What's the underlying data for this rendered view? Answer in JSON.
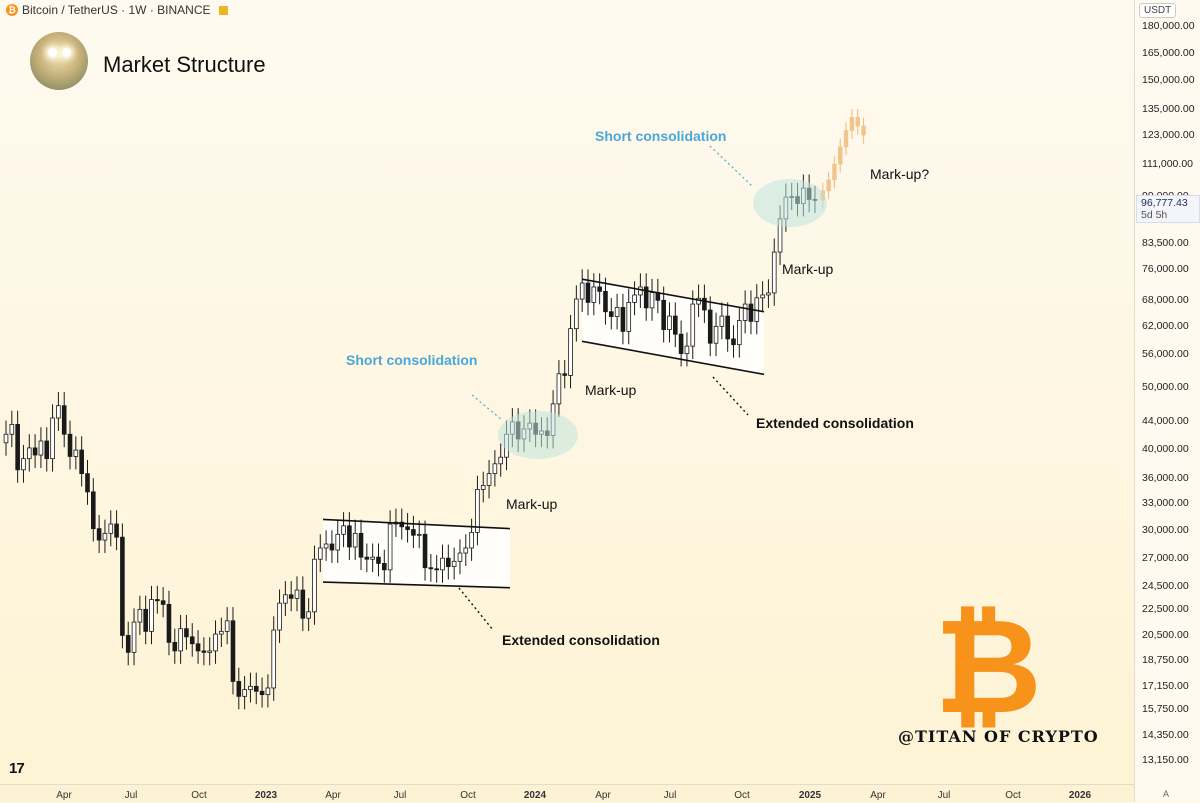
{
  "header": {
    "symbol": "Bitcoin / TetherUS · 1W · BINANCE",
    "symbol_icon": "bitcoin-icon"
  },
  "title": "Market Structure",
  "currency": "USDT",
  "current_price": {
    "value": "96,777.43",
    "countdown": "5d 5h"
  },
  "price_ticks": [
    "180,000.00",
    "165,000.00",
    "150,000.00",
    "135,000.00",
    "123,000.00",
    "111,000.00",
    "99,000.00",
    "91,500.00",
    "83,500.00",
    "76,000.00",
    "68,000.00",
    "62,000.00",
    "56,000.00",
    "50,000.00",
    "44,000.00",
    "40,000.00",
    "36,000.00",
    "33,000.00",
    "30,000.00",
    "27,000.00",
    "24,500.00",
    "22,500.00",
    "20,500.00",
    "18,750.00",
    "17,150.00",
    "15,750.00",
    "14,350.00",
    "13,150.00"
  ],
  "time_ticks": [
    {
      "label": "Apr",
      "bold": false
    },
    {
      "label": "Jul",
      "bold": false
    },
    {
      "label": "Oct",
      "bold": false
    },
    {
      "label": "2023",
      "bold": true
    },
    {
      "label": "Apr",
      "bold": false
    },
    {
      "label": "Jul",
      "bold": false
    },
    {
      "label": "Oct",
      "bold": false
    },
    {
      "label": "2024",
      "bold": true
    },
    {
      "label": "Apr",
      "bold": false
    },
    {
      "label": "Jul",
      "bold": false
    },
    {
      "label": "Oct",
      "bold": false
    },
    {
      "label": "2025",
      "bold": true
    },
    {
      "label": "Apr",
      "bold": false
    },
    {
      "label": "Jul",
      "bold": false
    },
    {
      "label": "Oct",
      "bold": false
    },
    {
      "label": "2026",
      "bold": true
    }
  ],
  "axis_mode_label": "A",
  "brand": {
    "tv_logo": "17",
    "watermark": "@TITAN OF CRYPTO",
    "logo_glyph": "₿",
    "logo_color": "#f7931a"
  },
  "colors": {
    "up": "#ffffff",
    "down": "#1a1a1a",
    "projection": "#f0c48a",
    "annotation_blue": "#4aa8d8",
    "ellipse": "#bfe6e0"
  },
  "annotations": [
    {
      "id": "short-consolidation-1",
      "text": "Short consolidation",
      "style": "blue"
    },
    {
      "id": "short-consolidation-2",
      "text": "Short consolidation",
      "style": "blue"
    },
    {
      "id": "markup-1",
      "text": "Mark-up",
      "style": "plain"
    },
    {
      "id": "markup-2",
      "text": "Mark-up",
      "style": "plain"
    },
    {
      "id": "markup-3",
      "text": "Mark-up",
      "style": "plain"
    },
    {
      "id": "markup-4",
      "text": "Mark-up?",
      "style": "plain"
    },
    {
      "id": "extended-consolidation-1",
      "text": "Extended consolidation",
      "style": "bold"
    },
    {
      "id": "extended-consolidation-2",
      "text": "Extended consolidation",
      "style": "bold"
    }
  ],
  "chart_data": {
    "type": "candlestick",
    "symbol": "BTC/USDT",
    "interval": "1W",
    "ylim": [
      13150,
      180000
    ],
    "y_scale": "log",
    "x_range": [
      "2022-01",
      "2026-01"
    ],
    "series": [
      {
        "name": "price",
        "close": [
          42000,
          43500,
          37000,
          38500,
          40000,
          39000,
          41000,
          38500,
          44500,
          46500,
          42000,
          38800,
          39700,
          36500,
          34200,
          30000,
          28800,
          29500,
          30500,
          29100,
          20500,
          19300,
          21500,
          22500,
          20800,
          23300,
          23200,
          22900,
          20000,
          19400,
          21000,
          20400,
          19900,
          19400,
          19300,
          19400,
          20600,
          20800,
          21600,
          17400,
          16500,
          16900,
          17100,
          16800,
          16600,
          17000,
          20900,
          23000,
          23700,
          23400,
          24100,
          21800,
          22300,
          26900,
          28000,
          28400,
          27800,
          29400,
          30300,
          28100,
          29500,
          27100,
          26900,
          27100,
          26500,
          25900,
          30500,
          30700,
          30200,
          29900,
          29300,
          29400,
          26100,
          26000,
          25900,
          27000,
          26200,
          26700,
          27500,
          28000,
          29600,
          34500,
          35000,
          36500,
          37800,
          38700,
          42000,
          43900,
          41300,
          42800,
          43700,
          42000,
          42500,
          41800,
          46800,
          52100,
          51800,
          61200,
          68000,
          72000,
          67200,
          71000,
          69900,
          65000,
          63900,
          66000,
          60600,
          67200,
          69000,
          71000,
          65900,
          69600,
          67700,
          61000,
          64000,
          60000,
          56000,
          57500,
          66800,
          68200,
          65400,
          58100,
          61700,
          64000,
          59000,
          57800,
          63000,
          66800,
          62800,
          68300,
          69000,
          69500,
          80400,
          90500,
          97800,
          98000,
          95600,
          101000,
          97000,
          96777
        ],
        "note": "weekly closes approximated from the chart, Jan 2022 – Dec 2024"
      },
      {
        "name": "projection",
        "values": [
          100000,
          104000,
          110000,
          117000,
          124000,
          130000,
          126000,
          122000
        ],
        "note": "hypothetical projected candles"
      }
    ],
    "channels": [
      {
        "name": "extended-consolidation-2023",
        "upper": [
          31000,
          30000
        ],
        "lower": [
          24800,
          24300
        ]
      },
      {
        "name": "extended-consolidation-2024",
        "upper": [
          73000,
          65000
        ],
        "lower": [
          58500,
          52000
        ]
      }
    ]
  }
}
